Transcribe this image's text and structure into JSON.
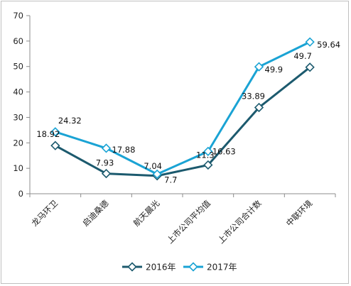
{
  "chart_data": {
    "type": "line",
    "title": "",
    "xlabel": "",
    "ylabel": "",
    "ylim": [
      0,
      70
    ],
    "yticks": [
      0,
      10,
      20,
      30,
      40,
      50,
      60,
      70
    ],
    "grid": false,
    "legend_position": "bottom",
    "categories": [
      "龙马环卫",
      "启迪桑德",
      "航天晨光",
      "上市公司平均值",
      "上市公司合计数",
      "中联环境"
    ],
    "series": [
      {
        "name": "2016年",
        "color": "#1c5a6e",
        "marker": "diamond",
        "values": [
          18.92,
          7.93,
          7.04,
          11.3,
          33.89,
          49.7
        ]
      },
      {
        "name": "2017年",
        "color": "#1aa3d4",
        "marker": "diamond",
        "values": [
          24.32,
          17.88,
          7.7,
          16.63,
          49.9,
          59.64
        ]
      }
    ]
  }
}
